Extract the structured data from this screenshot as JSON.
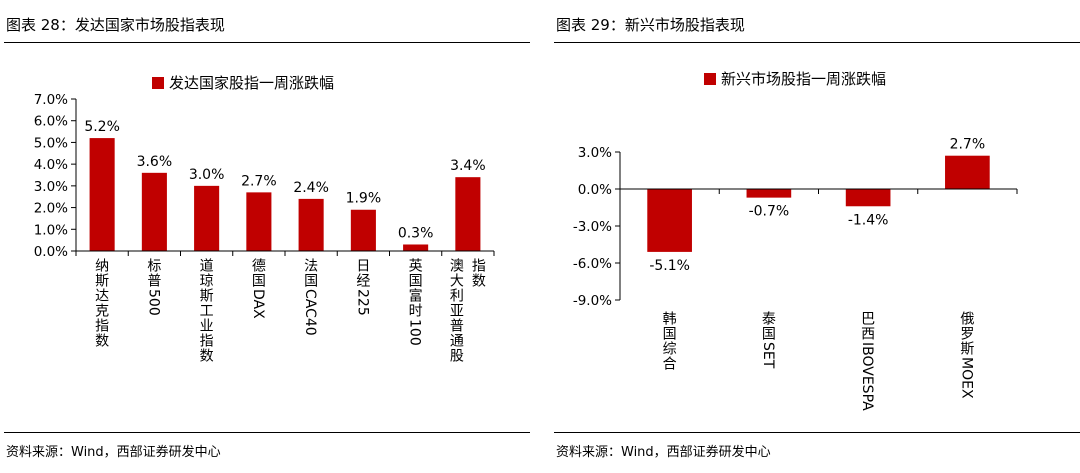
{
  "figures": [
    {
      "title": "图表 28：发达国家市场股指表现",
      "source": "资料来源：Wind，西部证券研发中心"
    },
    {
      "title": "图表 29：新兴市场股指表现",
      "source": "资料来源：Wind，西部证券研发中心"
    }
  ],
  "chart_data": [
    {
      "type": "bar",
      "legend": "发达国家股指一周涨跌幅",
      "legend_position": "top",
      "categories": [
        "纳斯达克指数",
        "标普500",
        "道琼斯工业指数",
        "德国DAX",
        "法国CAC40",
        "日经225",
        "英国富时100",
        "澳大利亚普通股指数"
      ],
      "values": [
        5.2,
        3.6,
        3.0,
        2.7,
        2.4,
        1.9,
        0.3,
        3.4
      ],
      "data_labels": [
        "5.2%",
        "3.6%",
        "3.0%",
        "2.7%",
        "2.4%",
        "1.9%",
        "0.3%",
        "3.4%"
      ],
      "ylim": [
        0,
        7
      ],
      "yticks": [
        "0.0%",
        "1.0%",
        "2.0%",
        "3.0%",
        "4.0%",
        "5.0%",
        "6.0%",
        "7.0%"
      ],
      "grid": false,
      "bar_color": "#c00000"
    },
    {
      "type": "bar",
      "legend": "新兴市场股指一周涨跌幅",
      "legend_position": "top",
      "categories": [
        "韩国综合",
        "泰国SET",
        "巴西IBOVESPA",
        "俄罗斯MOEX"
      ],
      "values": [
        -5.1,
        -0.7,
        -1.4,
        2.7
      ],
      "data_labels": [
        "-5.1%",
        "-0.7%",
        "-1.4%",
        "2.7%"
      ],
      "ylim": [
        -9,
        3
      ],
      "yticks": [
        "-9.0%",
        "-6.0%",
        "-3.0%",
        "0.0%",
        "3.0%"
      ],
      "grid": false,
      "bar_color": "#c00000"
    }
  ]
}
